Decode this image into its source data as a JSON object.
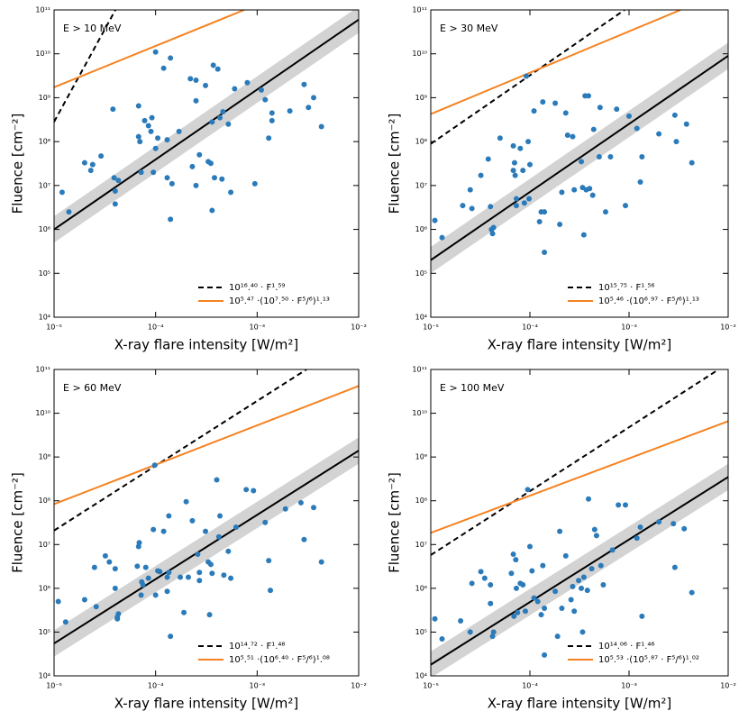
{
  "chart_data": [
    {
      "type": "scatter",
      "label": "E > 10 MeV",
      "xlabel": "X-ray flare intensity [W/m²]",
      "ylabel": "Fluence [cm⁻²]",
      "xscale": "log",
      "yscale": "log",
      "xlim": [
        1e-05,
        0.01
      ],
      "ylim": [
        10000.0,
        100000000000.0
      ],
      "xticks": [
        {
          "value": 1e-05,
          "label": "10⁻⁵"
        },
        {
          "value": 0.0001,
          "label": "10⁻⁴"
        },
        {
          "value": 0.001,
          "label": "10⁻³"
        },
        {
          "value": 0.01,
          "label": "10⁻²"
        }
      ],
      "yticks": [
        {
          "value": 10000.0,
          "label": "10⁴"
        },
        {
          "value": 100000.0,
          "label": "10⁵"
        },
        {
          "value": 1000000.0,
          "label": "10⁶"
        },
        {
          "value": 10000000.0,
          "label": "10⁷"
        },
        {
          "value": 100000000.0,
          "label": "10⁸"
        },
        {
          "value": 1000000000.0,
          "label": "10⁹"
        },
        {
          "value": 10000000000.0,
          "label": "10¹⁰"
        },
        {
          "value": 100000000000.0,
          "label": "10¹¹"
        }
      ],
      "series": [
        {
          "name": "10¹⁶.⁴⁰ · F¹.⁵⁹",
          "color": "#000000",
          "dash": true,
          "x": [
            1e-05,
            4.02e-05
          ],
          "values": [
            282000000.0,
            100000000000.0
          ]
        },
        {
          "name": "10⁵.⁴⁷ ·(10⁷.⁵⁰ · F⁵/⁶)¹.¹³",
          "color": "#f58220",
          "dash": false,
          "x": [
            1e-05,
            0.000746
          ],
          "values": [
            1730000000.0,
            100000000000.0
          ]
        }
      ],
      "fit": {
        "color": "#000000",
        "band_color": "#d3d3d3",
        "x": [
          1e-05,
          0.01
        ],
        "values": [
          1000000.0,
          60000000000.0
        ],
        "lower": [
          500000.0,
          30000000000.0
        ],
        "upper": [
          2000000.0,
          120000000000.0
        ]
      },
      "points": {
        "color": "#2b7bba",
        "x": [
          1.2e-05,
          1.4e-05,
          2e-05,
          2.3e-05,
          2.4e-05,
          2.9e-05,
          3.8e-05,
          3.9e-05,
          4e-05,
          4e-05,
          4.3e-05,
          6.8e-05,
          6.8e-05,
          7e-05,
          7.2e-05,
          7.8e-05,
          8.5e-05,
          9e-05,
          9.2e-05,
          9.5e-05,
          0.0001,
          0.0001,
          0.000105,
          0.00012,
          0.00013,
          0.00013,
          0.00014,
          0.00014,
          0.000145,
          0.00017,
          0.00022,
          0.00023,
          0.00025,
          0.00025,
          0.00025,
          0.00027,
          0.00031,
          0.00033,
          0.00035,
          0.00036,
          0.00036,
          0.00037,
          0.00038,
          0.00041,
          0.00043,
          0.00045,
          0.00046,
          0.00052,
          0.00055,
          0.0006,
          0.0008,
          0.00095,
          0.0011,
          0.0012,
          0.0013,
          0.0014,
          0.0014,
          0.0021,
          0.0029,
          0.0032,
          0.0036,
          0.0043
        ],
        "values": [
          7000000.0,
          2500000.0,
          33000000.0,
          22000000.0,
          30000000.0,
          47000000.0,
          550000000.0,
          15000000.0,
          7500000.0,
          3800000.0,
          13000000.0,
          650000000.0,
          130000000.0,
          100000000.0,
          20000000.0,
          300000000.0,
          230000000.0,
          170000000.0,
          350000000.0,
          20000000.0,
          11000000000.0,
          70000000.0,
          120000000.0,
          4700000000.0,
          110000000.0,
          15000000.0,
          8000000000.0,
          1700000.0,
          11000000.0,
          170000000.0,
          2700000000.0,
          27000000.0,
          2500000000.0,
          850000000.0,
          10000000.0,
          50000000.0,
          1900000000.0,
          35000000.0,
          32000000.0,
          280000000.0,
          2700000.0,
          5500000000.0,
          15000000.0,
          4500000000.0,
          350000000.0,
          14000000.0,
          480000000.0,
          250000000.0,
          7000000.0,
          1600000000.0,
          2200000000.0,
          11000000.0,
          1500000000.0,
          900000000.0,
          120000000.0,
          300000000.0,
          450000000.0,
          500000000.0,
          2000000000.0,
          600000000.0,
          1000000000.0,
          220000000.0
        ]
      }
    },
    {
      "type": "scatter",
      "label": "E > 30 MeV",
      "xlabel": "X-ray flare intensity [W/m²]",
      "ylabel": "Fluence [cm⁻²]",
      "xscale": "log",
      "yscale": "log",
      "xlim": [
        1e-05,
        0.01
      ],
      "ylim": [
        10000.0,
        100000000000.0
      ],
      "xticks": [
        {
          "value": 1e-05,
          "label": "10⁻⁵"
        },
        {
          "value": 0.0001,
          "label": "10⁻⁴"
        },
        {
          "value": 0.001,
          "label": "10⁻³"
        },
        {
          "value": 0.01,
          "label": "10⁻²"
        }
      ],
      "yticks": [
        {
          "value": 10000.0,
          "label": "10⁴"
        },
        {
          "value": 100000.0,
          "label": "10⁵"
        },
        {
          "value": 1000000.0,
          "label": "10⁶"
        },
        {
          "value": 10000000.0,
          "label": "10⁷"
        },
        {
          "value": 100000000.0,
          "label": "10⁸"
        },
        {
          "value": 1000000000.0,
          "label": "10⁹"
        },
        {
          "value": 10000000000.0,
          "label": "10¹⁰"
        },
        {
          "value": 100000000000.0,
          "label": "10¹¹"
        }
      ],
      "series": [
        {
          "name": "10¹⁵.⁷⁵ · F¹.⁵⁶",
          "color": "#000000",
          "dash": true,
          "x": [
            1e-05,
            0.000902
          ],
          "values": [
            89000000.0,
            100000000000.0
          ]
        },
        {
          "name": "10⁵.⁴⁶ ·(10⁶.⁹⁷ · F⁵/⁶)¹.¹³",
          "color": "#f58220",
          "dash": false,
          "x": [
            1e-05,
            0.00331
          ],
          "values": [
            425000000.0,
            100000000000.0
          ]
        }
      ],
      "fit": {
        "color": "#000000",
        "band_color": "#d3d3d3",
        "x": [
          1e-05,
          0.01
        ],
        "values": [
          200000.0,
          9000000000.0
        ],
        "lower": [
          100000.0,
          4500000000.0
        ],
        "upper": [
          400000.0,
          18000000000.0
        ]
      },
      "points": {
        "color": "#2b7bba",
        "x": [
          1.1e-05,
          1.3e-05,
          2.1e-05,
          2.5e-05,
          2.6e-05,
          3.2e-05,
          3.8e-05,
          4e-05,
          4.1e-05,
          4.2e-05,
          4.3e-05,
          5e-05,
          6.8e-05,
          6.8e-05,
          7e-05,
          7.1e-05,
          7.3e-05,
          7.3e-05,
          8e-05,
          8.5e-05,
          8.8e-05,
          9.2e-05,
          9.6e-05,
          9.8e-05,
          0.0001,
          0.00011,
          0.000125,
          0.00013,
          0.000135,
          0.00014,
          0.00014,
          0.00018,
          0.0002,
          0.00021,
          0.00023,
          0.00024,
          0.00027,
          0.00028,
          0.00033,
          0.00034,
          0.00035,
          0.00036,
          0.00037,
          0.00039,
          0.0004,
          0.00043,
          0.00044,
          0.0005,
          0.00051,
          0.00058,
          0.00065,
          0.00075,
          0.00092,
          0.001,
          0.0012,
          0.0013,
          0.00135,
          0.002,
          0.0029,
          0.003,
          0.0038,
          0.0043
        ],
        "values": [
          1600000.0,
          650000.0,
          3500000.0,
          8000000.0,
          3000000.0,
          17000000.0,
          40000000.0,
          3300000.0,
          1000000.0,
          800000.0,
          1100000.0,
          120000000.0,
          80000000.0,
          22000000.0,
          33000000.0,
          17000000.0,
          3500000.0,
          5000000.0,
          70000000.0,
          22000000.0,
          4000000.0,
          3100000000.0,
          100000000.0,
          5000000.0,
          30000000.0,
          500000000.0,
          1500000.0,
          2500000.0,
          800000000.0,
          300000.0,
          2500000.0,
          750000000.0,
          1300000.0,
          7000000.0,
          450000000.0,
          140000000.0,
          130000000.0,
          8000000.0,
          35000000.0,
          9000000.0,
          750000.0,
          1100000000.0,
          8000000.0,
          1100000000.0,
          8500000.0,
          6000000.0,
          190000000.0,
          45000000.0,
          600000000.0,
          2500000.0,
          45000000.0,
          550000000.0,
          3500000.0,
          380000000.0,
          200000000.0,
          12000000.0,
          45000000.0,
          150000000.0,
          400000000.0,
          100000000.0,
          250000000.0,
          33000000.0
        ]
      }
    },
    {
      "type": "scatter",
      "label": "E > 60 MeV",
      "xlabel": "X-ray flare intensity [W/m²]",
      "ylabel": "Fluence [cm⁻²]",
      "xscale": "log",
      "yscale": "log",
      "xlim": [
        1e-05,
        0.01
      ],
      "ylim": [
        10000.0,
        100000000000.0
      ],
      "xticks": [
        {
          "value": 1e-05,
          "label": "10⁻⁵"
        },
        {
          "value": 0.0001,
          "label": "10⁻⁴"
        },
        {
          "value": 0.001,
          "label": "10⁻³"
        },
        {
          "value": 0.01,
          "label": "10⁻²"
        }
      ],
      "yticks": [
        {
          "value": 10000.0,
          "label": "10⁴"
        },
        {
          "value": 100000.0,
          "label": "10⁵"
        },
        {
          "value": 1000000.0,
          "label": "10⁶"
        },
        {
          "value": 10000000.0,
          "label": "10⁷"
        },
        {
          "value": 100000000.0,
          "label": "10⁸"
        },
        {
          "value": 1000000000.0,
          "label": "10⁹"
        },
        {
          "value": 10000000000.0,
          "label": "10¹⁰"
        },
        {
          "value": 100000000000.0,
          "label": "10¹¹"
        }
      ],
      "series": [
        {
          "name": "10¹⁴.⁷² · F¹.⁴⁸",
          "color": "#000000",
          "dash": true,
          "x": [
            1e-05,
            0.00306
          ],
          "values": [
            20900000.0,
            100000000000.0
          ]
        },
        {
          "name": "10⁵.⁵¹ ·(10⁶.⁴⁰ · F⁵/⁶)¹.⁰⁸",
          "color": "#f58220",
          "dash": false,
          "x": [
            1e-05,
            0.01
          ],
          "values": [
            83600000.0,
            41900000000.0
          ]
        }
      ],
      "fit": {
        "color": "#000000",
        "band_color": "#d3d3d3",
        "x": [
          1e-05,
          0.01
        ],
        "values": [
          55000.0,
          1400000000.0
        ],
        "lower": [
          27500.0,
          700000000.0
        ],
        "upper": [
          110000.0,
          2800000000.0
        ]
      },
      "points": {
        "color": "#2b7bba",
        "x": [
          1.1e-05,
          1.3e-05,
          2e-05,
          2.5e-05,
          2.6e-05,
          3.2e-05,
          3.5e-05,
          4e-05,
          4e-05,
          4.2e-05,
          4.3e-05,
          4.2e-05,
          6.6e-05,
          6.8e-05,
          6.9e-05,
          7.2e-05,
          7.3e-05,
          7.5e-05,
          8e-05,
          8.5e-05,
          9.5e-05,
          9.8e-05,
          0.0001,
          0.000105,
          0.00011,
          0.00012,
          0.00013,
          0.00013,
          0.000135,
          0.00014,
          0.000135,
          0.000175,
          0.00019,
          0.0002,
          0.00021,
          0.00023,
          0.00026,
          0.00027,
          0.00027,
          0.00031,
          0.00033,
          0.00034,
          0.00035,
          0.00036,
          0.0004,
          0.00042,
          0.00043,
          0.00047,
          0.00052,
          0.00055,
          0.00062,
          0.00078,
          0.00092,
          0.0012,
          0.0013,
          0.00135,
          0.0019,
          0.0027,
          0.0029,
          0.0036,
          0.0043
        ],
        "values": [
          500000.0,
          170000.0,
          550000.0,
          3000000.0,
          380000.0,
          5500000.0,
          4000000.0,
          2800000.0,
          1000000.0,
          200000.0,
          260000.0,
          220000.0,
          3200000.0,
          9000000.0,
          11000000.0,
          700000.0,
          1400000.0,
          1200000.0,
          3000000.0,
          1700000.0,
          22000000.0,
          650000000.0,
          700000.0,
          2500000.0,
          2400000.0,
          20000000.0,
          850000.0,
          1800000.0,
          45000000.0,
          80000.0,
          2300000.0,
          1800000.0,
          280000.0,
          95000000.0,
          1800000.0,
          35000000.0,
          6000000.0,
          1500000.0,
          2300000.0,
          20000000.0,
          4000000.0,
          250000.0,
          3500000.0,
          2200000.0,
          300000000.0,
          15000000.0,
          45000000.0,
          2000000.0,
          7000000.0,
          1700000.0,
          25000000.0,
          180000000.0,
          170000000.0,
          32000000.0,
          4300000.0,
          900000.0,
          65000000.0,
          90000000.0,
          13000000.0,
          70000000.0,
          4000000.0
        ]
      }
    },
    {
      "type": "scatter",
      "label": "E > 100 MeV",
      "xlabel": "X-ray flare intensity [W/m²]",
      "ylabel": "Fluence [cm⁻²]",
      "xscale": "log",
      "yscale": "log",
      "xlim": [
        1e-05,
        0.01
      ],
      "ylim": [
        10000.0,
        100000000000.0
      ],
      "xticks": [
        {
          "value": 1e-05,
          "label": "10⁻⁵"
        },
        {
          "value": 0.0001,
          "label": "10⁻⁴"
        },
        {
          "value": 0.001,
          "label": "10⁻³"
        },
        {
          "value": 0.01,
          "label": "10⁻²"
        }
      ],
      "yticks": [
        {
          "value": 10000.0,
          "label": "10⁴"
        },
        {
          "value": 100000.0,
          "label": "10⁵"
        },
        {
          "value": 1000000.0,
          "label": "10⁶"
        },
        {
          "value": 10000000.0,
          "label": "10⁷"
        },
        {
          "value": 100000000.0,
          "label": "10⁸"
        },
        {
          "value": 1000000000.0,
          "label": "10⁹"
        },
        {
          "value": 10000000000.0,
          "label": "10¹⁰"
        },
        {
          "value": 100000000000.0,
          "label": "10¹¹"
        }
      ],
      "series": [
        {
          "name": "10¹⁴.⁰⁶ · F¹.⁴⁶",
          "color": "#000000",
          "dash": true,
          "x": [
            1e-05,
            0.00802
          ],
          "values": [
            5750000.0,
            100000000000.0
          ]
        },
        {
          "name": "10⁵.⁵³ ·(10⁵.⁸⁷ · F⁵/⁶)¹.⁰²",
          "color": "#f58220",
          "dash": false,
          "x": [
            1e-05,
            0.01
          ],
          "values": [
            18500000.0,
            6560000000.0
          ]
        }
      ],
      "fit": {
        "color": "#000000",
        "band_color": "#d3d3d3",
        "x": [
          1e-05,
          0.01
        ],
        "values": [
          18000.0,
          350000000.0
        ],
        "lower": [
          9000.0,
          175000000.0
        ],
        "upper": [
          36000.0,
          700000000.0
        ]
      },
      "points": {
        "color": "#2b7bba",
        "x": [
          1.1e-05,
          1.3e-05,
          2e-05,
          2.5e-05,
          2.6e-05,
          3.2e-05,
          3.5e-05,
          4e-05,
          4e-05,
          4.2e-05,
          4.3e-05,
          6.5e-05,
          6.8e-05,
          6.9e-05,
          7.2e-05,
          7.3e-05,
          7.5e-05,
          8e-05,
          8.5e-05,
          9e-05,
          9.5e-05,
          0.0001,
          0.000105,
          0.00011,
          0.00012,
          0.00013,
          0.000135,
          0.00014,
          0.00014,
          0.00018,
          0.00019,
          0.0002,
          0.00021,
          0.00023,
          0.00026,
          0.00027,
          0.00028,
          0.00031,
          0.00033,
          0.00034,
          0.00035,
          0.00038,
          0.00039,
          0.00042,
          0.00045,
          0.00047,
          0.00052,
          0.00055,
          0.00068,
          0.00078,
          0.00092,
          0.0012,
          0.0013,
          0.00135,
          0.002,
          0.0028,
          0.0029,
          0.0036,
          0.0043
        ],
        "values": [
          200000.0,
          70000.0,
          180000.0,
          100000.0,
          1300000.0,
          2400000.0,
          1700000.0,
          450000.0,
          1200000.0,
          80000.0,
          100000.0,
          2200000.0,
          6000000.0,
          230000.0,
          4500000.0,
          1000000.0,
          280000.0,
          1300000.0,
          1200000.0,
          300000.0,
          180000000.0,
          9000000.0,
          2500000.0,
          600000.0,
          500000.0,
          250000.0,
          3300000.0,
          30000.0,
          350000.0,
          850000.0,
          80000.0,
          20000000.0,
          350000.0,
          5500000.0,
          550000.0,
          1100000.0,
          300000.0,
          1500000.0,
          1000000.0,
          100000.0,
          1800000.0,
          900000.0,
          110000000.0,
          2800000.0,
          22000000.0,
          16000000.0,
          3300000.0,
          1200000.0,
          7500000.0,
          80000000.0,
          80000000.0,
          14000000.0,
          25000000.0,
          230000.0,
          33000000.0,
          30000000.0,
          3000000.0,
          23000000.0,
          800000.0
        ]
      }
    }
  ]
}
